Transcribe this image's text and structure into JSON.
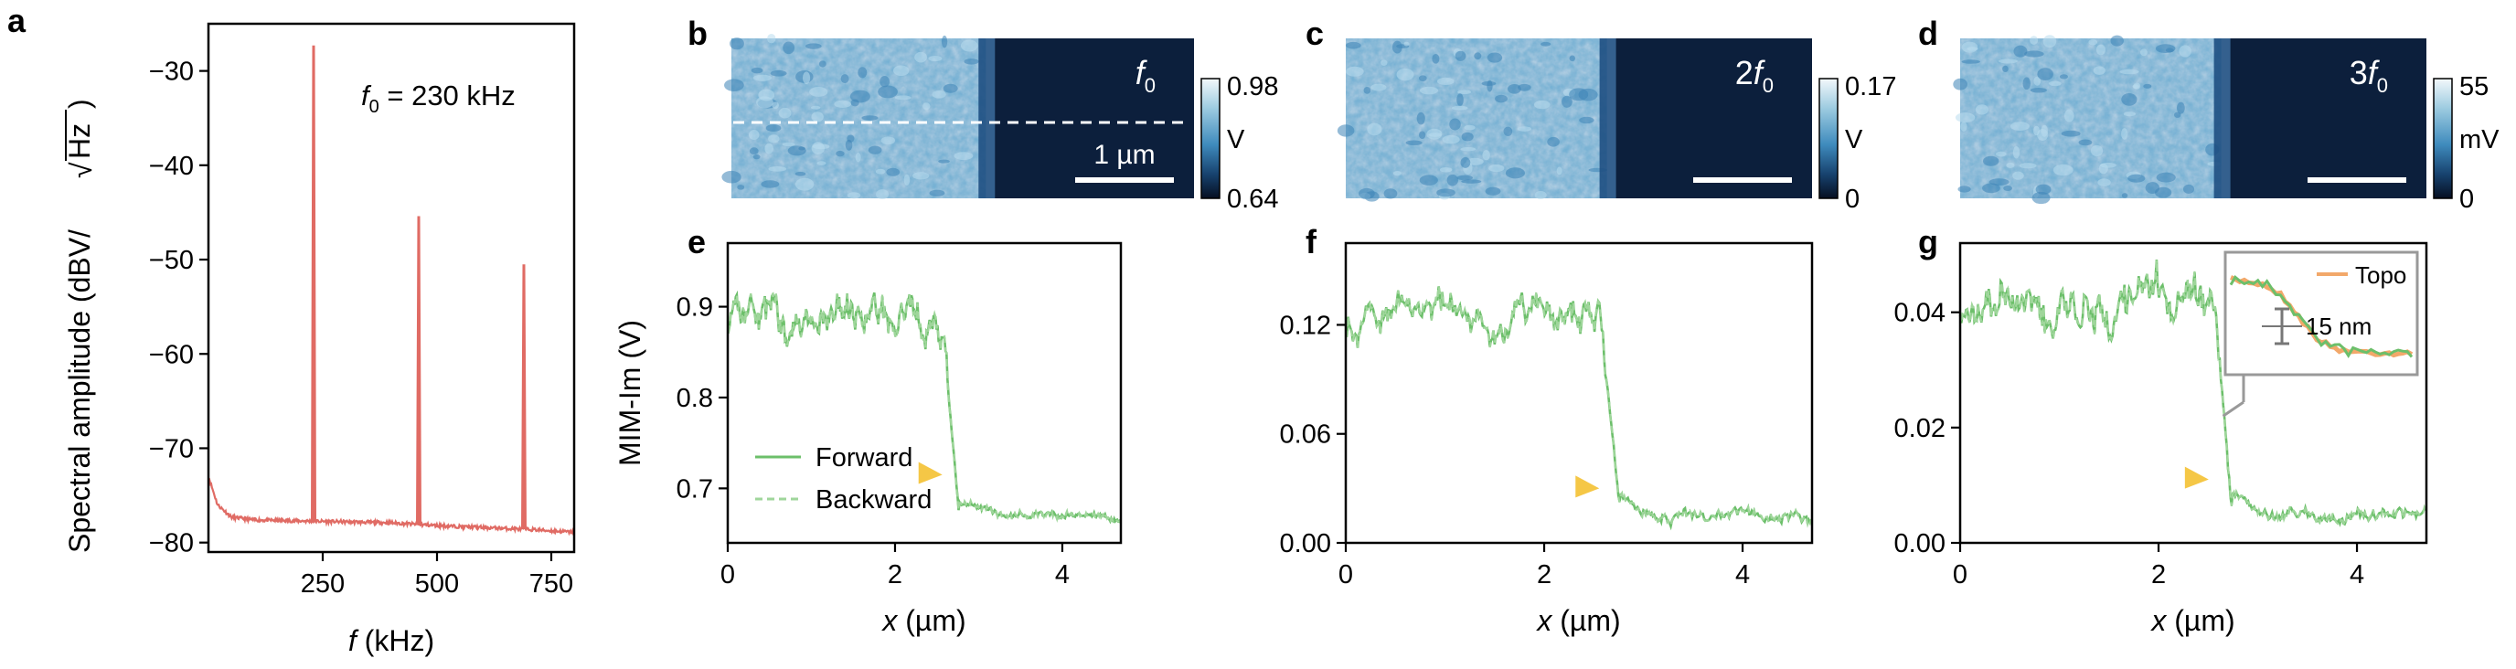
{
  "panel_letters": [
    "a",
    "b",
    "c",
    "d",
    "e",
    "f",
    "g"
  ],
  "scale_bar_label": "1 µm",
  "chart_data": [
    {
      "id": "a",
      "type": "line",
      "xlabel_italic": "f",
      "xlabel_rest": " (kHz)",
      "ylabel_text": "Spectral amplitude (dBV/",
      "ylabel_sqrt": "Hz",
      "ylabel_close": ")",
      "xlim": [
        0,
        800
      ],
      "ylim": [
        -81,
        -25
      ],
      "xticks": [
        250,
        500,
        750
      ],
      "yticks": [
        -80,
        -70,
        -60,
        -50,
        -40,
        -30
      ],
      "annotation_italic": "f",
      "annotation_sub": "0",
      "annotation_rest": " = 230 kHz",
      "color": "#e06b64",
      "baseline": {
        "x": [
          0,
          20,
          50,
          100,
          200,
          300,
          400,
          500,
          600,
          700,
          800
        ],
        "y": [
          -73,
          -76,
          -77.3,
          -77.6,
          -77.7,
          -77.8,
          -77.9,
          -78.2,
          -78.4,
          -78.6,
          -78.9
        ]
      },
      "peaks": [
        {
          "x": 230,
          "y": -27.3
        },
        {
          "x": 460,
          "y": -45.4
        },
        {
          "x": 690,
          "y": -50.5
        }
      ]
    },
    {
      "id": "b",
      "type": "heatmap",
      "label_pre": "",
      "label_italic": "f",
      "label_sub": "0",
      "colorbar_ticks": [
        "0.98",
        "V",
        "0.64"
      ],
      "edge_fraction": 0.55
    },
    {
      "id": "c",
      "type": "heatmap",
      "label_pre": "2",
      "label_italic": "f",
      "label_sub": "0",
      "colorbar_ticks": [
        "0.17",
        "V",
        "0"
      ],
      "edge_fraction": 0.56
    },
    {
      "id": "d",
      "type": "heatmap",
      "label_pre": "3",
      "label_italic": "f",
      "label_sub": "0",
      "colorbar_ticks": [
        "55",
        "mV",
        "0"
      ],
      "edge_fraction": 0.56
    },
    {
      "id": "e",
      "type": "line",
      "xlabel_italic": "x",
      "xlabel_rest": " (µm)",
      "ylabel": "MIM-Im (V)",
      "xlim": [
        0,
        4.7
      ],
      "ylim": [
        0.64,
        0.97
      ],
      "xticks": [
        0,
        2,
        4
      ],
      "yticks": [
        0.7,
        0.8,
        0.9
      ],
      "ytick_labels": [
        "0.7",
        "0.8",
        "0.9"
      ],
      "edge": 2.65,
      "high": 0.89,
      "low": 0.67,
      "noise_high": 0.025,
      "noise_low": 0.005,
      "arrow_x": 2.5,
      "arrow_y": 0.715,
      "legend": [
        "Forward",
        "Backward"
      ],
      "color": "#6cbf6a"
    },
    {
      "id": "f",
      "type": "line",
      "xlabel_italic": "x",
      "xlabel_rest": " (µm)",
      "ylabel": "",
      "xlim": [
        0,
        4.7
      ],
      "ylim": [
        0,
        0.165
      ],
      "xticks": [
        0,
        2,
        4
      ],
      "yticks": [
        0,
        0.06,
        0.12
      ],
      "ytick_labels": [
        "0.00",
        "0.06",
        "0.12"
      ],
      "edge": 2.65,
      "high": 0.125,
      "low": 0.014,
      "noise_high": 0.012,
      "noise_low": 0.004,
      "arrow_x": 2.5,
      "arrow_y": 0.03,
      "legend": [],
      "color": "#6cbf6a"
    },
    {
      "id": "g",
      "type": "line",
      "xlabel_italic": "x",
      "xlabel_rest": " (µm)",
      "ylabel": "",
      "xlim": [
        0,
        4.7
      ],
      "ylim": [
        0,
        0.052
      ],
      "xticks": [
        0,
        2,
        4
      ],
      "yticks": [
        0,
        0.02,
        0.04
      ],
      "ytick_labels": [
        "0.00",
        "0.02",
        "0.04"
      ],
      "edge": 2.62,
      "high": 0.041,
      "low": 0.005,
      "noise_high": 0.005,
      "noise_low": 0.0015,
      "arrow_x": 2.45,
      "arrow_y": 0.011,
      "legend": [],
      "color": "#6cbf6a",
      "inset_legend": "Topo",
      "inset_scale": "15 nm",
      "inset_topo_color": "#f2a86a"
    }
  ]
}
